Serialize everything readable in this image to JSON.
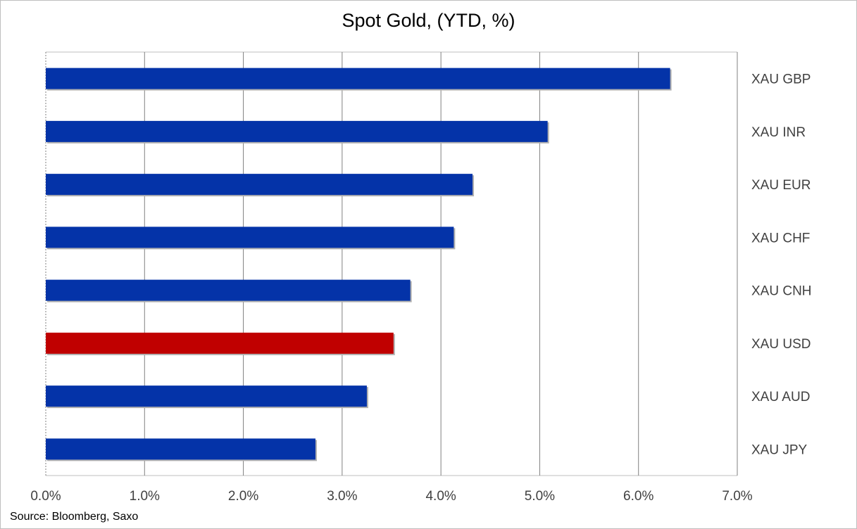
{
  "chart_data": {
    "type": "bar",
    "orientation": "horizontal",
    "title": "Spot Gold, (YTD, %)",
    "categories": [
      "XAU GBP",
      "XAU INR",
      "XAU EUR",
      "XAU CHF",
      "XAU CNH",
      "XAU USD",
      "XAU AUD",
      "XAU JPY"
    ],
    "values": [
      6.32,
      5.08,
      4.32,
      4.13,
      3.69,
      3.52,
      3.25,
      2.73
    ],
    "xlim": [
      0,
      7
    ],
    "x_ticks": [
      "0.0%",
      "1.0%",
      "2.0%",
      "3.0%",
      "4.0%",
      "5.0%",
      "6.0%",
      "7.0%"
    ],
    "grid": true,
    "label_placement": "right",
    "colors": {
      "default": "#0433a8",
      "highlight": "#c00000",
      "highlight_category": "XAU USD",
      "grid": "#808080"
    }
  },
  "source": "Source: Bloomberg, Saxo"
}
